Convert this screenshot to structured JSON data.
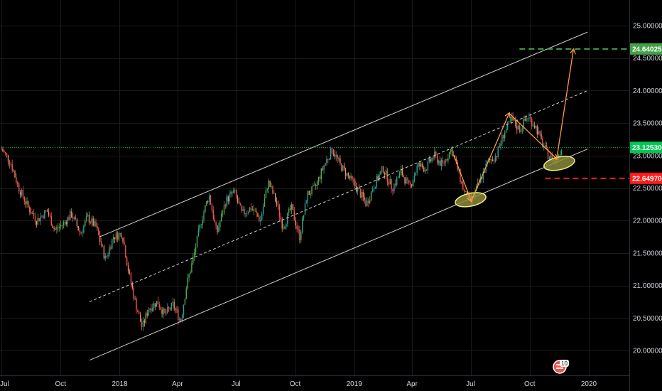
{
  "chart_data": {
    "type": "candlestick",
    "title": "",
    "xlabel": "",
    "ylabel": "",
    "ylim": [
      19.7,
      25.25
    ],
    "x_range": [
      "2017-07-01",
      "2020-01-01"
    ],
    "y_ticks": [
      "25.00000",
      "24.50000",
      "24.00000",
      "23.50000",
      "23.00000",
      "22.50000",
      "22.00000",
      "21.50000",
      "21.00000",
      "20.50000",
      "20.00000"
    ],
    "x_ticks": [
      {
        "label": "Jul",
        "date": "2017-07-01"
      },
      {
        "label": "Oct",
        "date": "2017-10-01"
      },
      {
        "label": "2018",
        "date": "2018-01-01"
      },
      {
        "label": "Apr",
        "date": "2018-04-01"
      },
      {
        "label": "Jul",
        "date": "2018-07-01"
      },
      {
        "label": "Oct",
        "date": "2018-10-01"
      },
      {
        "label": "2019",
        "date": "2019-01-01"
      },
      {
        "label": "Apr",
        "date": "2019-04-01"
      },
      {
        "label": "Jul",
        "date": "2019-07-01"
      },
      {
        "label": "Oct",
        "date": "2019-10-01"
      },
      {
        "label": "2020",
        "date": "2020-01-01"
      }
    ],
    "price_path": [
      [
        "2017-07-01",
        23.1
      ],
      [
        "2017-07-15",
        22.9
      ],
      [
        "2017-07-28",
        22.5
      ],
      [
        "2017-08-12",
        22.2
      ],
      [
        "2017-08-25",
        22.0
      ],
      [
        "2017-09-10",
        22.15
      ],
      [
        "2017-09-22",
        21.85
      ],
      [
        "2017-10-05",
        21.95
      ],
      [
        "2017-10-18",
        22.1
      ],
      [
        "2017-11-01",
        21.8
      ],
      [
        "2017-11-12",
        22.05
      ],
      [
        "2017-11-25",
        21.9
      ],
      [
        "2017-12-10",
        21.4
      ],
      [
        "2017-12-22",
        21.75
      ],
      [
        "2018-01-05",
        21.8
      ],
      [
        "2018-01-15",
        21.2
      ],
      [
        "2018-01-25",
        20.75
      ],
      [
        "2018-02-05",
        20.35
      ],
      [
        "2018-02-15",
        20.65
      ],
      [
        "2018-03-01",
        20.75
      ],
      [
        "2018-03-12",
        20.55
      ],
      [
        "2018-03-25",
        20.7
      ],
      [
        "2018-04-06",
        20.45
      ],
      [
        "2018-04-15",
        21.0
      ],
      [
        "2018-04-25",
        21.4
      ],
      [
        "2018-05-08",
        22.0
      ],
      [
        "2018-05-20",
        22.4
      ],
      [
        "2018-06-01",
        21.8
      ],
      [
        "2018-06-15",
        22.3
      ],
      [
        "2018-06-28",
        22.45
      ],
      [
        "2018-07-10",
        22.1
      ],
      [
        "2018-07-25",
        22.2
      ],
      [
        "2018-08-08",
        22.0
      ],
      [
        "2018-08-20",
        22.6
      ],
      [
        "2018-09-01",
        22.3
      ],
      [
        "2018-09-12",
        21.9
      ],
      [
        "2018-09-25",
        22.2
      ],
      [
        "2018-10-08",
        21.75
      ],
      [
        "2018-10-20",
        22.4
      ],
      [
        "2018-11-01",
        22.5
      ],
      [
        "2018-11-15",
        22.85
      ],
      [
        "2018-11-28",
        23.1
      ],
      [
        "2018-12-10",
        22.85
      ],
      [
        "2018-12-25",
        22.65
      ],
      [
        "2019-01-08",
        22.45
      ],
      [
        "2019-01-20",
        22.25
      ],
      [
        "2019-02-01",
        22.55
      ],
      [
        "2019-02-15",
        22.8
      ],
      [
        "2019-03-01",
        22.5
      ],
      [
        "2019-03-15",
        22.75
      ],
      [
        "2019-03-28",
        22.5
      ],
      [
        "2019-04-10",
        22.85
      ],
      [
        "2019-04-22",
        22.8
      ],
      [
        "2019-05-05",
        23.0
      ],
      [
        "2019-05-18",
        22.85
      ],
      [
        "2019-06-01",
        23.1
      ],
      [
        "2019-06-12",
        22.75
      ],
      [
        "2019-06-22",
        22.4
      ],
      [
        "2019-07-03",
        22.3
      ],
      [
        "2019-07-15",
        22.6
      ],
      [
        "2019-07-28",
        22.9
      ],
      [
        "2019-08-10",
        23.0
      ],
      [
        "2019-08-22",
        23.35
      ],
      [
        "2019-09-03",
        23.55
      ],
      [
        "2019-09-15",
        23.4
      ],
      [
        "2019-09-28",
        23.6
      ],
      [
        "2019-10-10",
        23.45
      ],
      [
        "2019-10-20",
        23.2
      ],
      [
        "2019-10-30",
        23.0
      ],
      [
        "2019-11-10",
        22.9
      ],
      [
        "2019-11-20",
        23.13
      ]
    ],
    "channel_lines": [
      {
        "style": "solid",
        "points": [
          [
            "2017-12-01",
            21.75
          ],
          [
            "2019-12-30",
            24.9
          ]
        ]
      },
      {
        "style": "dashed",
        "points": [
          [
            "2017-11-15",
            20.75
          ],
          [
            "2019-12-30",
            24.0
          ]
        ]
      },
      {
        "style": "solid",
        "points": [
          [
            "2017-11-15",
            19.85
          ],
          [
            "2019-12-30",
            23.1
          ]
        ]
      }
    ],
    "projection_arrows": [
      {
        "points": [
          [
            "2019-06-05",
            23.0
          ],
          [
            "2019-07-02",
            22.3
          ],
          [
            "2019-08-30",
            23.65
          ],
          [
            "2019-11-12",
            22.95
          ],
          [
            "2019-12-08",
            24.63
          ]
        ]
      }
    ],
    "highlight_ellipses": [
      {
        "center": [
          "2019-07-01",
          22.32
        ]
      },
      {
        "center": [
          "2019-11-16",
          22.88
        ]
      }
    ],
    "price_levels": [
      {
        "value": 23.1253,
        "label": "23.12530",
        "color": "#00c853",
        "style": "dotted",
        "from": "2017-07-01"
      },
      {
        "value": 24.64025,
        "label": "24.64025",
        "color": "#43a047",
        "style": "dashed",
        "from": "2019-09-15"
      },
      {
        "value": 22.6497,
        "label": "22.64970",
        "color": "#ff1a1a",
        "style": "dashed",
        "from": "2019-10-25"
      }
    ],
    "colors": {
      "up": "#26a69a",
      "up_bright": "#4caf50",
      "down": "#ef5350",
      "down_light": "#ff8a65",
      "channel": "#cfcfcf",
      "arrow": "#ff9a3c",
      "ellipse_fill": "#8a8a3a",
      "ellipse_stroke": "#f0f08a"
    }
  },
  "badge": {
    "count": "10",
    "icon": "flag-icon"
  }
}
